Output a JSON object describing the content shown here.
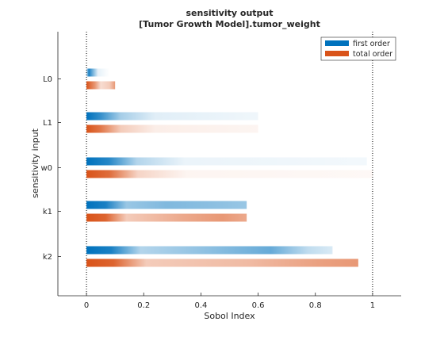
{
  "figure": {
    "title_line1": "sensitivity output",
    "title_line2": "[Tumor Growth Model].tumor_weight"
  },
  "colors": {
    "first_order": "#0072BD",
    "total_order": "#D95319",
    "axis": "#262626",
    "reference_line": "#000000"
  },
  "chart_data": {
    "type": "bar",
    "orientation": "horizontal",
    "title": "sensitivity output\n[Tumor Growth Model].tumor_weight",
    "xlabel": "Sobol Index",
    "ylabel": "sensitivity input",
    "xlim": [
      -0.1,
      1.1
    ],
    "xticks": [
      0,
      0.2,
      0.4,
      0.6,
      0.8,
      1
    ],
    "xtick_labels": [
      "0",
      "0.2",
      "0.4",
      "0.6",
      "0.8",
      "1"
    ],
    "reference_lines_x": [
      0,
      1
    ],
    "grid": false,
    "legend_location": "top-right",
    "categories": [
      "L0",
      "L1",
      "w0",
      "k1",
      "k2"
    ],
    "series": [
      {
        "name": "first order",
        "color": "#0072BD",
        "values": [
          0.08,
          0.6,
          0.98,
          0.56,
          0.86
        ],
        "gradient_profiles": [
          [
            [
              0,
              0.2
            ],
            [
              0.1,
              0.9
            ],
            [
              0.5,
              0.1
            ],
            [
              1,
              0.0
            ]
          ],
          [
            [
              0,
              1.0
            ],
            [
              0.08,
              0.8
            ],
            [
              0.2,
              0.35
            ],
            [
              0.4,
              0.12
            ],
            [
              1,
              0.06
            ]
          ],
          [
            [
              0,
              1.0
            ],
            [
              0.08,
              0.85
            ],
            [
              0.18,
              0.3
            ],
            [
              0.35,
              0.08
            ],
            [
              1,
              0.05
            ]
          ],
          [
            [
              0,
              1.0
            ],
            [
              0.12,
              0.9
            ],
            [
              0.25,
              0.4
            ],
            [
              0.5,
              0.5
            ],
            [
              0.8,
              0.45
            ],
            [
              1,
              0.4
            ]
          ],
          [
            [
              0,
              1.0
            ],
            [
              0.1,
              0.9
            ],
            [
              0.22,
              0.3
            ],
            [
              0.5,
              0.45
            ],
            [
              0.75,
              0.6
            ],
            [
              0.9,
              0.25
            ],
            [
              1,
              0.15
            ]
          ]
        ]
      },
      {
        "name": "total order",
        "color": "#D95319",
        "values": [
          0.1,
          0.6,
          1.0,
          0.56,
          0.95
        ],
        "gradient_profiles": [
          [
            [
              0,
              1.0
            ],
            [
              0.3,
              0.6
            ],
            [
              0.5,
              0.2
            ],
            [
              0.8,
              0.3
            ],
            [
              1,
              0.6
            ]
          ],
          [
            [
              0,
              1.0
            ],
            [
              0.08,
              0.8
            ],
            [
              0.2,
              0.3
            ],
            [
              0.4,
              0.1
            ],
            [
              1,
              0.06
            ]
          ],
          [
            [
              0,
              1.0
            ],
            [
              0.08,
              0.85
            ],
            [
              0.18,
              0.25
            ],
            [
              0.35,
              0.06
            ],
            [
              1,
              0.04
            ]
          ],
          [
            [
              0,
              1.0
            ],
            [
              0.12,
              0.9
            ],
            [
              0.25,
              0.3
            ],
            [
              0.6,
              0.5
            ],
            [
              0.85,
              0.6
            ],
            [
              1,
              0.5
            ]
          ],
          [
            [
              0,
              1.0
            ],
            [
              0.1,
              0.9
            ],
            [
              0.22,
              0.3
            ],
            [
              0.6,
              0.4
            ],
            [
              0.85,
              0.55
            ],
            [
              1,
              0.6
            ]
          ]
        ]
      }
    ]
  }
}
